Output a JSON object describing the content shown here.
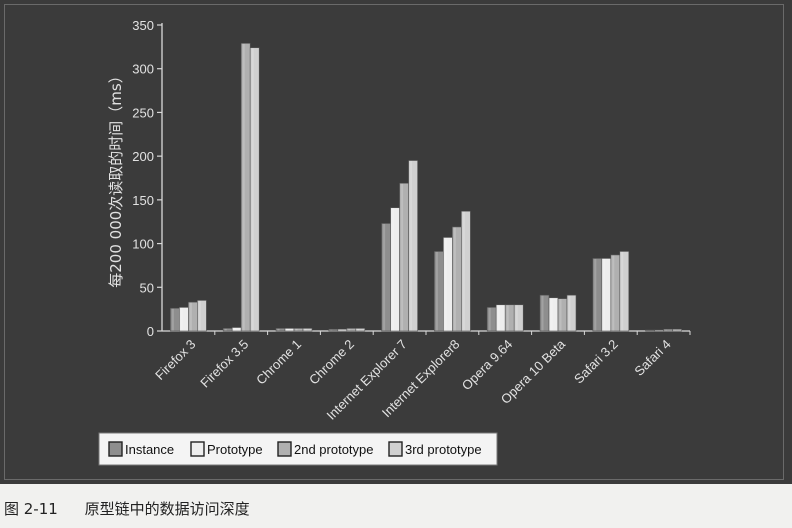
{
  "chart_data": {
    "type": "bar",
    "ylabel": "每200 000次读取的时间（ms）",
    "ylim": [
      0,
      350
    ],
    "yticks": [
      0,
      50,
      100,
      150,
      200,
      250,
      300,
      350
    ],
    "grid": false,
    "legend_position": "bottom",
    "categories": [
      "Firefox 3",
      "Firefox 3.5",
      "Chrome 1",
      "Chrome 2",
      "Internet Explorer 7",
      "Internet Explorer8",
      "Opera 9.64",
      "Opera 10 Beta",
      "Safari 3.2",
      "Safari 4"
    ],
    "series": [
      {
        "name": "Instance",
        "color": "#8e8e8e",
        "values": [
          26,
          3,
          3,
          2,
          123,
          91,
          27,
          41,
          83,
          1
        ]
      },
      {
        "name": "Prototype",
        "color": "#eeeeee",
        "values": [
          27,
          4,
          3,
          2,
          141,
          107,
          30,
          38,
          83,
          1
        ]
      },
      {
        "name": "2nd prototype",
        "color": "#b0b0b0",
        "values": [
          33,
          329,
          3,
          3,
          169,
          119,
          30,
          37,
          87,
          2
        ]
      },
      {
        "name": "3rd prototype",
        "color": "#d0d0d0",
        "values": [
          35,
          324,
          3,
          3,
          195,
          137,
          30,
          41,
          91,
          2
        ]
      }
    ]
  },
  "caption": {
    "number": "图 2-11",
    "text": "原型链中的数据访问深度"
  }
}
